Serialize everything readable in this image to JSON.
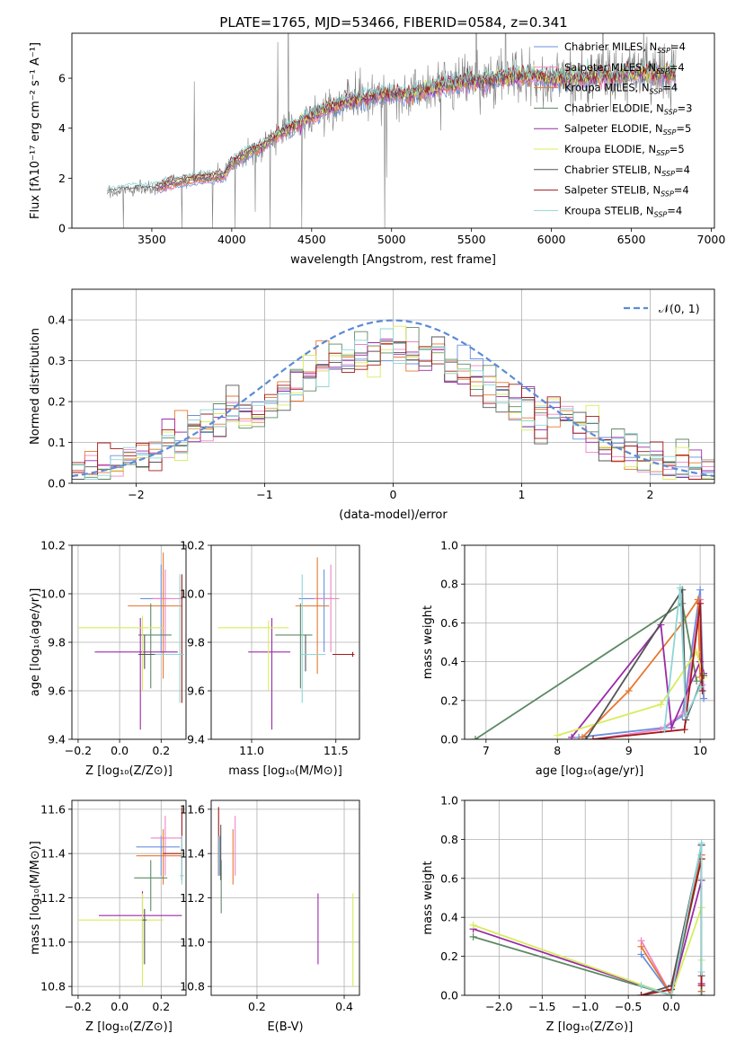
{
  "figure": {
    "title": "PLATE=1765, MJD=53466, FIBERID=0584, z=0.341"
  },
  "chart_data": [
    {
      "id": "spectrum",
      "type": "line",
      "title": "PLATE=1765, MJD=53466, FIBERID=0584, z=0.341",
      "xlabel": "wavelength [Angstrom, rest frame]",
      "ylabel": "Flux [fλ10⁻¹⁷ erg cm⁻² s⁻¹ A⁻¹]",
      "xlim": [
        3000,
        7020
      ],
      "ylim": [
        0,
        7.8
      ],
      "xticks": [
        3500,
        4000,
        4500,
        5000,
        5500,
        6000,
        6500,
        7000
      ],
      "yticks": [
        0,
        2,
        4,
        6
      ],
      "grid": false,
      "legend": "top-right",
      "data_color": "#808080",
      "continuum": {
        "x": [
          3220,
          3300,
          3400,
          3480,
          3530,
          3600,
          3700,
          3800,
          3900,
          3950,
          4000,
          4100,
          4200,
          4300,
          4400,
          4500,
          4600,
          4700,
          4800,
          4900,
          5000,
          5100,
          5200,
          5300,
          5400,
          5500,
          5600,
          5700,
          5800,
          5900,
          6000,
          6100,
          6200,
          6300,
          6400,
          6500,
          6600,
          6700,
          6780
        ],
        "y": [
          1.4,
          1.5,
          1.55,
          1.55,
          1.6,
          1.75,
          1.9,
          2.0,
          2.05,
          2.1,
          2.6,
          3.0,
          3.3,
          3.8,
          4.1,
          4.5,
          4.8,
          5.0,
          5.2,
          5.3,
          5.4,
          5.3,
          5.5,
          5.7,
          5.8,
          5.9,
          5.9,
          6.0,
          6.1,
          6.1,
          6.0,
          6.0,
          6.0,
          6.1,
          6.1,
          6.2,
          6.2,
          6.2,
          6.1
        ]
      },
      "series": [
        {
          "name": "Chabrier MILES, N",
          "sub": "SSP",
          "suffix": "=4",
          "color": "#6a8fde"
        },
        {
          "name": "Salpeter MILES, N",
          "sub": "SSP",
          "suffix": "=4",
          "color": "#ef85c6"
        },
        {
          "name": "Kroupa MILES, N",
          "sub": "SSP",
          "suffix": "=4",
          "color": "#e6782f"
        },
        {
          "name": "Chabrier ELODIE, N",
          "sub": "SSP",
          "suffix": "=3",
          "color": "#5d8a64"
        },
        {
          "name": "Salpeter ELODIE, N",
          "sub": "SSP",
          "suffix": "=5",
          "color": "#9a2ba8"
        },
        {
          "name": "Kroupa ELODIE, N",
          "sub": "SSP",
          "suffix": "=5",
          "color": "#d8ec5a"
        },
        {
          "name": "Chabrier STELIB, N",
          "sub": "SSP",
          "suffix": "=4",
          "color": "#555555"
        },
        {
          "name": "Salpeter STELIB, N",
          "sub": "SSP",
          "suffix": "=4",
          "color": "#a11a1a"
        },
        {
          "name": "Kroupa STELIB, N",
          "sub": "SSP",
          "suffix": "=4",
          "color": "#8fd6d6"
        }
      ]
    },
    {
      "id": "residuals",
      "type": "line",
      "xlabel": "(data-model)/error",
      "ylabel": "Normed distribution",
      "xlim": [
        -2.5,
        2.5
      ],
      "ylim": [
        0,
        0.475
      ],
      "xticks": [
        -2,
        -1,
        0,
        1,
        2
      ],
      "yticks": [
        0.0,
        0.1,
        0.2,
        0.3,
        0.4
      ],
      "grid": true,
      "legend": "top-right",
      "reference": {
        "name": "𝒩(0, 1)",
        "mean": 0,
        "sigma": 1,
        "color": "#5b8bd8"
      },
      "bin_width": 0.1
    },
    {
      "id": "age-vs-Z",
      "type": "scatter",
      "xlabel": "Z [log₁₀(Z/Z⊙)]",
      "ylabel": "age  [log₁₀(age/yr)]",
      "xlim": [
        -0.23,
        0.32
      ],
      "ylim": [
        9.4,
        10.2
      ],
      "xticks": [
        -0.2,
        0.0,
        0.2
      ],
      "yticks": [
        9.4,
        9.6,
        9.8,
        10.0,
        10.2
      ],
      "grid": true,
      "points": [
        {
          "x": 0.2,
          "y": 9.98,
          "xerr": [
            0.1,
            0.04
          ],
          "yerr": [
            0.22,
            0.14
          ],
          "color": "#6a8fde"
        },
        {
          "x": 0.22,
          "y": 9.98,
          "xerr": [
            0.06,
            0.08
          ],
          "yerr": [
            0.22,
            0.12
          ],
          "color": "#ef85c6"
        },
        {
          "x": 0.21,
          "y": 9.95,
          "xerr": [
            0.17,
            0.09
          ],
          "yerr": [
            0.3,
            0.22
          ],
          "color": "#e6782f"
        },
        {
          "x": 0.15,
          "y": 9.83,
          "xerr": [
            0.06,
            0.1
          ],
          "yerr": [
            0.22,
            0.13
          ],
          "color": "#5d8a64"
        },
        {
          "x": 0.1,
          "y": 9.76,
          "xerr": [
            0.22,
            0.18
          ],
          "yerr": [
            0.32,
            0.14
          ],
          "color": "#9a2ba8"
        },
        {
          "x": 0.11,
          "y": 9.86,
          "xerr": [
            0.31,
            0.1
          ],
          "yerr": [
            0.26,
            0.05
          ],
          "color": "#d8ec5a"
        },
        {
          "x": 0.12,
          "y": 9.75,
          "xerr": [
            0.03,
            0.18
          ],
          "yerr": [
            0.06,
            0.08
          ],
          "color": "#555555"
        },
        {
          "x": 0.3,
          "y": 9.75,
          "xerr": [
            0.1,
            0.01
          ],
          "yerr": [
            0.2,
            0.33
          ],
          "color": "#a11a1a"
        },
        {
          "x": 0.29,
          "y": 9.75,
          "xerr": [
            0.12,
            0.02
          ],
          "yerr": [
            0.2,
            0.33
          ],
          "color": "#8fd6d6"
        }
      ]
    },
    {
      "id": "age-vs-mass",
      "type": "scatter",
      "xlabel": "mass [log₁₀(M/M⊙)]",
      "ylabel": "",
      "xlim": [
        10.76,
        11.64
      ],
      "ylim": [
        9.4,
        10.2
      ],
      "xticks": [
        11.0,
        11.5
      ],
      "yticks": [
        9.4,
        9.6,
        9.8,
        10.0,
        10.2
      ],
      "grid": true,
      "points": [
        {
          "x": 11.43,
          "y": 9.98,
          "xerr": [
            0.15,
            0.05
          ],
          "yerr": [
            0.22,
            0.12
          ],
          "color": "#6a8fde"
        },
        {
          "x": 11.47,
          "y": 9.98,
          "xerr": [
            0.1,
            0.05
          ],
          "yerr": [
            0.22,
            0.14
          ],
          "color": "#ef85c6"
        },
        {
          "x": 11.39,
          "y": 9.95,
          "xerr": [
            0.13,
            0.07
          ],
          "yerr": [
            0.28,
            0.2
          ],
          "color": "#e6782f"
        },
        {
          "x": 11.29,
          "y": 9.83,
          "xerr": [
            0.15,
            0.07
          ],
          "yerr": [
            0.22,
            0.13
          ],
          "color": "#5d8a64"
        },
        {
          "x": 11.12,
          "y": 9.76,
          "xerr": [
            0.14,
            0.11
          ],
          "yerr": [
            0.32,
            0.14
          ],
          "color": "#9a2ba8"
        },
        {
          "x": 11.1,
          "y": 9.86,
          "xerr": [
            0.3,
            0.12
          ],
          "yerr": [
            0.26,
            0.03
          ],
          "color": "#d8ec5a"
        },
        {
          "x": 11.32,
          "y": 9.75,
          "xerr": [
            0.03,
            0.12
          ],
          "yerr": [
            0.07,
            0.08
          ],
          "color": "#555555"
        },
        {
          "x": 11.6,
          "y": 9.75,
          "xerr": [
            0.12,
            0.01
          ],
          "yerr": [
            0.01,
            0.01
          ],
          "color": "#a11a1a"
        },
        {
          "x": 11.3,
          "y": 9.75,
          "xerr": [
            0.01,
            0.14
          ],
          "yerr": [
            0.2,
            0.33
          ],
          "color": "#8fd6d6"
        }
      ]
    },
    {
      "id": "massweight-vs-age",
      "type": "line",
      "xlabel": "age  [log₁₀(age/yr)]",
      "ylabel": "mass weight",
      "xlim": [
        6.7,
        10.2
      ],
      "ylim": [
        0,
        1.0
      ],
      "xticks": [
        7,
        8,
        9,
        10
      ],
      "yticks": [
        0.0,
        0.2,
        0.4,
        0.6,
        0.8,
        1.0
      ],
      "grid": true,
      "series": [
        {
          "color": "#6a8fde",
          "x": [
            8.3,
            9.5,
            9.75,
            10.0,
            10.05
          ],
          "y": [
            0.01,
            0.06,
            0.12,
            0.77,
            0.21
          ]
        },
        {
          "color": "#ef85c6",
          "x": [
            8.5,
            9.45,
            9.78,
            10.0,
            10.03
          ],
          "y": [
            0.0,
            0.05,
            0.14,
            0.72,
            0.28
          ]
        },
        {
          "color": "#e6782f",
          "x": [
            8.35,
            9.0,
            9.75,
            9.97,
            10.0
          ],
          "y": [
            0.01,
            0.25,
            0.6,
            0.72,
            0.32
          ]
        },
        {
          "color": "#5d8a64",
          "x": [
            6.85,
            9.75,
            9.95
          ],
          "y": [
            0.0,
            0.7,
            0.3
          ]
        },
        {
          "color": "#9a2ba8",
          "x": [
            8.2,
            9.45,
            9.6,
            10.0,
            10.05
          ],
          "y": [
            0.01,
            0.59,
            0.06,
            0.4,
            0.34
          ]
        },
        {
          "color": "#d8ec5a",
          "x": [
            8.0,
            9.45,
            9.95,
            10.05
          ],
          "y": [
            0.02,
            0.18,
            0.45,
            0.32
          ]
        },
        {
          "color": "#555555",
          "x": [
            8.4,
            9.75,
            9.8,
            10.05
          ],
          "y": [
            0.0,
            0.77,
            0.1,
            0.33
          ]
        },
        {
          "color": "#a11a1a",
          "x": [
            8.5,
            9.78,
            10.0,
            10.03
          ],
          "y": [
            0.0,
            0.05,
            0.7,
            0.25
          ]
        },
        {
          "color": "#8fd6d6",
          "x": [
            9.5,
            9.72,
            9.8,
            10.0
          ],
          "y": [
            0.05,
            0.78,
            0.12,
            0.27
          ]
        }
      ]
    },
    {
      "id": "mass-vs-Z",
      "type": "scatter",
      "xlabel": "Z [log₁₀(Z/Z⊙)]",
      "ylabel": "mass [log₁₀(M/M⊙)]",
      "xlim": [
        -0.23,
        0.32
      ],
      "ylim": [
        10.76,
        11.64
      ],
      "xticks": [
        -0.2,
        0.0,
        0.2
      ],
      "yticks": [
        10.8,
        11.0,
        11.2,
        11.4,
        11.6
      ],
      "grid": true,
      "points": [
        {
          "x": 0.2,
          "y": 11.43,
          "xerr": [
            0.12,
            0.09
          ],
          "yerr": [
            0.13,
            0.05
          ],
          "color": "#6a8fde"
        },
        {
          "x": 0.22,
          "y": 11.47,
          "xerr": [
            0.07,
            0.08
          ],
          "yerr": [
            0.17,
            0.1
          ],
          "color": "#ef85c6"
        },
        {
          "x": 0.21,
          "y": 11.39,
          "xerr": [
            0.13,
            0.09
          ],
          "yerr": [
            0.13,
            0.12
          ],
          "color": "#e6782f"
        },
        {
          "x": 0.15,
          "y": 11.29,
          "xerr": [
            0.08,
            0.08
          ],
          "yerr": [
            0.15,
            0.08
          ],
          "color": "#5d8a64"
        },
        {
          "x": 0.11,
          "y": 11.12,
          "xerr": [
            0.21,
            0.19
          ],
          "yerr": [
            0.22,
            0.11
          ],
          "color": "#9a2ba8"
        },
        {
          "x": 0.11,
          "y": 11.1,
          "xerr": [
            0.31,
            0.1
          ],
          "yerr": [
            0.3,
            0.12
          ],
          "color": "#d8ec5a"
        },
        {
          "x": 0.12,
          "y": 11.1,
          "xerr": [
            0.01,
            0.01
          ],
          "yerr": [
            0.2,
            0.05
          ],
          "color": "#555555"
        },
        {
          "x": 0.3,
          "y": 11.4,
          "xerr": [
            0.09,
            0.01
          ],
          "yerr": [
            0.12,
            0.21
          ],
          "color": "#a11a1a"
        },
        {
          "x": 0.3,
          "y": 11.3,
          "xerr": [
            0.01,
            0.01
          ],
          "yerr": [
            0.04,
            0.18
          ],
          "color": "#8fd6d6"
        }
      ]
    },
    {
      "id": "mass-vs-ebv",
      "type": "scatter",
      "xlabel": "E(B-V)",
      "ylabel": "",
      "xlim": [
        0.095,
        0.435
      ],
      "ylim": [
        10.76,
        11.64
      ],
      "xticks": [
        0.2,
        0.4
      ],
      "yticks": [
        10.8,
        11.0,
        11.2,
        11.4,
        11.6
      ],
      "grid": true,
      "points": [
        {
          "x": 0.115,
          "y": 11.43,
          "xerr": [
            0,
            0
          ],
          "yerr": [
            0.13,
            0.05
          ],
          "color": "#6a8fde"
        },
        {
          "x": 0.15,
          "y": 11.47,
          "xerr": [
            0,
            0
          ],
          "yerr": [
            0.17,
            0.1
          ],
          "color": "#ef85c6"
        },
        {
          "x": 0.145,
          "y": 11.39,
          "xerr": [
            0,
            0
          ],
          "yerr": [
            0.13,
            0.12
          ],
          "color": "#e6782f"
        },
        {
          "x": 0.118,
          "y": 11.29,
          "xerr": [
            0,
            0
          ],
          "yerr": [
            0.16,
            0.08
          ],
          "color": "#5d8a64"
        },
        {
          "x": 0.34,
          "y": 11.05,
          "xerr": [
            0,
            0
          ],
          "yerr": [
            0.15,
            0.17
          ],
          "color": "#9a2ba8"
        },
        {
          "x": 0.42,
          "y": 11.01,
          "xerr": [
            0,
            0
          ],
          "yerr": [
            0.21,
            0.21
          ],
          "color": "#d8ec5a"
        },
        {
          "x": 0.117,
          "y": 11.4,
          "xerr": [
            0,
            0
          ],
          "yerr": [
            0.12,
            0.13
          ],
          "color": "#555555"
        },
        {
          "x": 0.112,
          "y": 11.43,
          "xerr": [
            0,
            0
          ],
          "yerr": [
            0.13,
            0.18
          ],
          "color": "#a11a1a"
        },
        {
          "x": 0.113,
          "y": 11.35,
          "xerr": [
            0,
            0
          ],
          "yerr": [
            0.05,
            0.13
          ],
          "color": "#8fd6d6"
        }
      ]
    },
    {
      "id": "massweight-vs-Z",
      "type": "line",
      "xlabel": "Z [log₁₀(Z/Z⊙)]",
      "ylabel": "mass weight",
      "xlim": [
        -2.4,
        0.5
      ],
      "ylim": [
        0,
        1.0
      ],
      "xticks": [
        -2.0,
        -1.5,
        -1.0,
        -0.5,
        0.0
      ],
      "yticks": [
        0.0,
        0.2,
        0.4,
        0.6,
        0.8,
        1.0
      ],
      "grid": true,
      "series": [
        {
          "color": "#6a8fde",
          "x": [
            -0.35,
            0.0,
            0.35,
            0.35
          ],
          "y": [
            0.21,
            0.0,
            0.77,
            0.02
          ]
        },
        {
          "color": "#ef85c6",
          "x": [
            -0.35,
            0.0,
            0.35,
            0.35
          ],
          "y": [
            0.28,
            0.0,
            0.72,
            0.0
          ]
        },
        {
          "color": "#e6782f",
          "x": [
            -0.35,
            0.0,
            0.35,
            0.35
          ],
          "y": [
            0.25,
            0.0,
            0.72,
            0.02
          ]
        },
        {
          "color": "#5d8a64",
          "x": [
            -2.3,
            0.0,
            0.35,
            0.35
          ],
          "y": [
            0.3,
            0.0,
            0.7,
            0.0
          ]
        },
        {
          "color": "#9a2ba8",
          "x": [
            -2.3,
            0.0,
            0.35,
            0.35
          ],
          "y": [
            0.34,
            0.0,
            0.59,
            0.06
          ]
        },
        {
          "color": "#d8ec5a",
          "x": [
            -2.3,
            0.0,
            0.35,
            0.35
          ],
          "y": [
            0.36,
            0.0,
            0.45,
            0.18
          ]
        },
        {
          "color": "#555555",
          "x": [
            -0.35,
            0.0,
            0.35,
            0.35
          ],
          "y": [
            0.0,
            0.05,
            0.77,
            0.1
          ]
        },
        {
          "color": "#a11a1a",
          "x": [
            -0.35,
            0.0,
            0.35,
            0.35
          ],
          "y": [
            0.0,
            0.03,
            0.7,
            0.05
          ]
        },
        {
          "color": "#8fd6d6",
          "x": [
            -0.35,
            0.0,
            0.35,
            0.35
          ],
          "y": [
            0.05,
            0.0,
            0.78,
            0.12
          ]
        }
      ]
    }
  ]
}
